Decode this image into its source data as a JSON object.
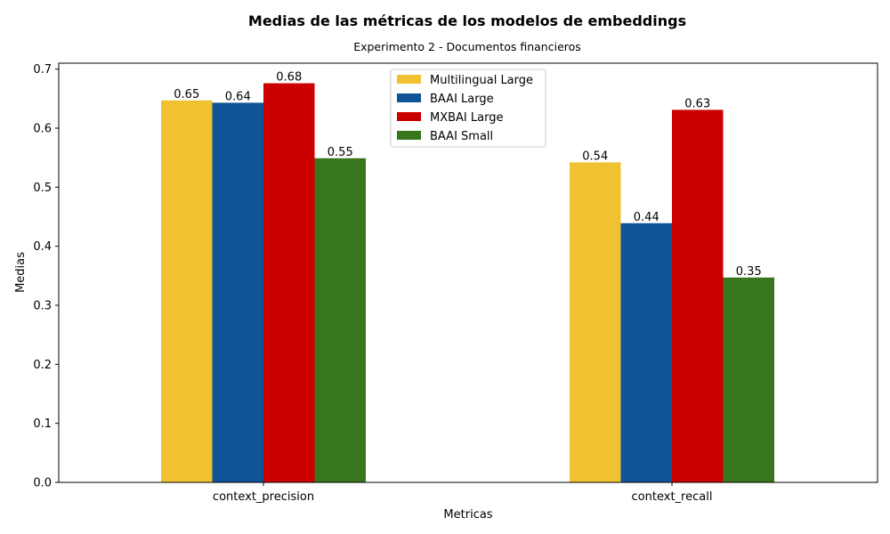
{
  "chart_data": {
    "type": "bar",
    "title": "Medias de las métricas de los modelos de embeddings",
    "subtitle": "Experimento 2 - Documentos financieros",
    "xlabel": "Metricas",
    "ylabel": "Medias",
    "categories": [
      "context_precision",
      "context_recall"
    ],
    "ylim": [
      0,
      0.71
    ],
    "yticks": [
      "0.0",
      "0.1",
      "0.2",
      "0.3",
      "0.4",
      "0.5",
      "0.6",
      "0.7"
    ],
    "grid": false,
    "legend_position": "top-center",
    "series": [
      {
        "name": "Multilingual Large",
        "color": "#f0c232",
        "values": [
          0.647,
          0.542
        ],
        "labels": [
          "0.65",
          "0.54"
        ]
      },
      {
        "name": "BAAI Large",
        "color": "#0f5496",
        "values": [
          0.643,
          0.439
        ],
        "labels": [
          "0.64",
          "0.44"
        ]
      },
      {
        "name": "MXBAI Large",
        "color": "#cc0000",
        "values": [
          0.676,
          0.631
        ],
        "labels": [
          "0.68",
          "0.63"
        ]
      },
      {
        "name": "BAAI Small",
        "color": "#38761d",
        "values": [
          0.549,
          0.347
        ],
        "labels": [
          "0.55",
          "0.35"
        ]
      }
    ]
  }
}
